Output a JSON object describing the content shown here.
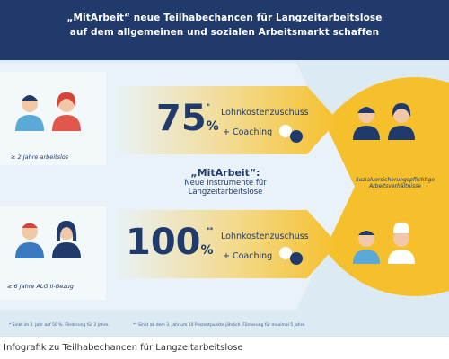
{
  "infographic": {
    "title_line1": "„MitArbeit“ neue Teilhabechancen für Langzeitarbeitslose",
    "title_line2": "auf dem allgemeinen und sozialen Arbeitsmarkt schaffen",
    "group1_label": "≥ 2 Jahre arbeitslos",
    "group2_label": "≥ 6 Jahre ALG II-Bezug",
    "row1": {
      "percent": "75",
      "percent_sign": "%",
      "stars": "*",
      "subsidy": "Lohnkostenzuschuss",
      "coaching": "+ Coaching"
    },
    "row2": {
      "percent": "100",
      "percent_sign": "%",
      "stars": "**",
      "subsidy": "Lohnkostenzuschuss",
      "coaching": "+ Coaching"
    },
    "center_line1": "„MitArbeit“:",
    "center_line2": "Neue Instrumente für",
    "center_line3": "Langzeitarbeitslose",
    "right_label_line1": "Sozialversicherungspflichtige",
    "right_label_line2": "Arbeitsverhältnisse",
    "footnote1": "* Sinkt im 2. Jahr auf 50 %. Förderung für 2 Jahre.",
    "footnote2": "** Sinkt ab dem 3. Jahr um 10 Prozentpunkte jährlich. Förderung für maximal 5 Jahre."
  },
  "caption": "Infografik zu Teilhabechancen für Langzeitarbeitslose",
  "colors": {
    "navy": "#1f3a6b",
    "yellow": "#f6c02c",
    "light_blue": "#dceaf4",
    "pale_blue": "#e9f2f8"
  }
}
